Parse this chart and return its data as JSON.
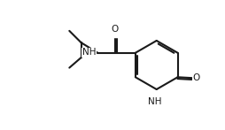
{
  "bg_color": "#ffffff",
  "line_color": "#1a1a1a",
  "line_width": 1.5,
  "font_size": 7.5,
  "fig_width": 2.54,
  "fig_height": 1.47,
  "dpi": 100,
  "xlim": [
    0,
    14
  ],
  "ylim": [
    0,
    8.2
  ]
}
